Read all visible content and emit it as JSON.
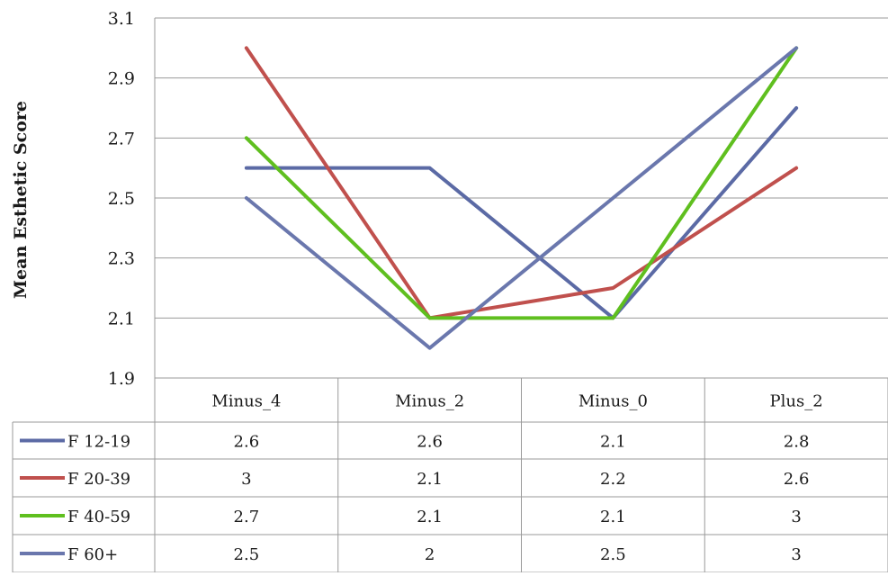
{
  "chart_data": {
    "type": "line",
    "title": "",
    "xlabel": "",
    "ylabel": "Mean Esthetic Score",
    "categories": [
      "Minus_4",
      "Minus_2",
      "Minus_0",
      "Plus_2"
    ],
    "yticks": [
      "3.1",
      "2.9",
      "2.7",
      "2.5",
      "2.3",
      "2.1",
      "1.9"
    ],
    "ylim": [
      1.9,
      3.1
    ],
    "grid": true,
    "legend": "data-table-left",
    "series": [
      {
        "name": "F 12-19",
        "values": [
          2.6,
          2.6,
          2.1,
          2.8
        ],
        "labels": [
          "2.6",
          "2.6",
          "2.1",
          "2.8"
        ],
        "color": "#5b6aa5"
      },
      {
        "name": "F 20-39",
        "values": [
          3,
          2.1,
          2.2,
          2.6
        ],
        "labels": [
          "3",
          "2.1",
          "2.2",
          "2.6"
        ],
        "color": "#c0504d"
      },
      {
        "name": "F 40-59",
        "values": [
          2.7,
          2.1,
          2.1,
          3
        ],
        "labels": [
          "2.7",
          "2.1",
          "2.1",
          "3"
        ],
        "color": "#5fbf1f"
      },
      {
        "name": "F 60+",
        "values": [
          2.5,
          2,
          2.5,
          3
        ],
        "labels": [
          "2.5",
          "2",
          "2.5",
          "3"
        ],
        "color": "#6a77ad"
      }
    ]
  }
}
